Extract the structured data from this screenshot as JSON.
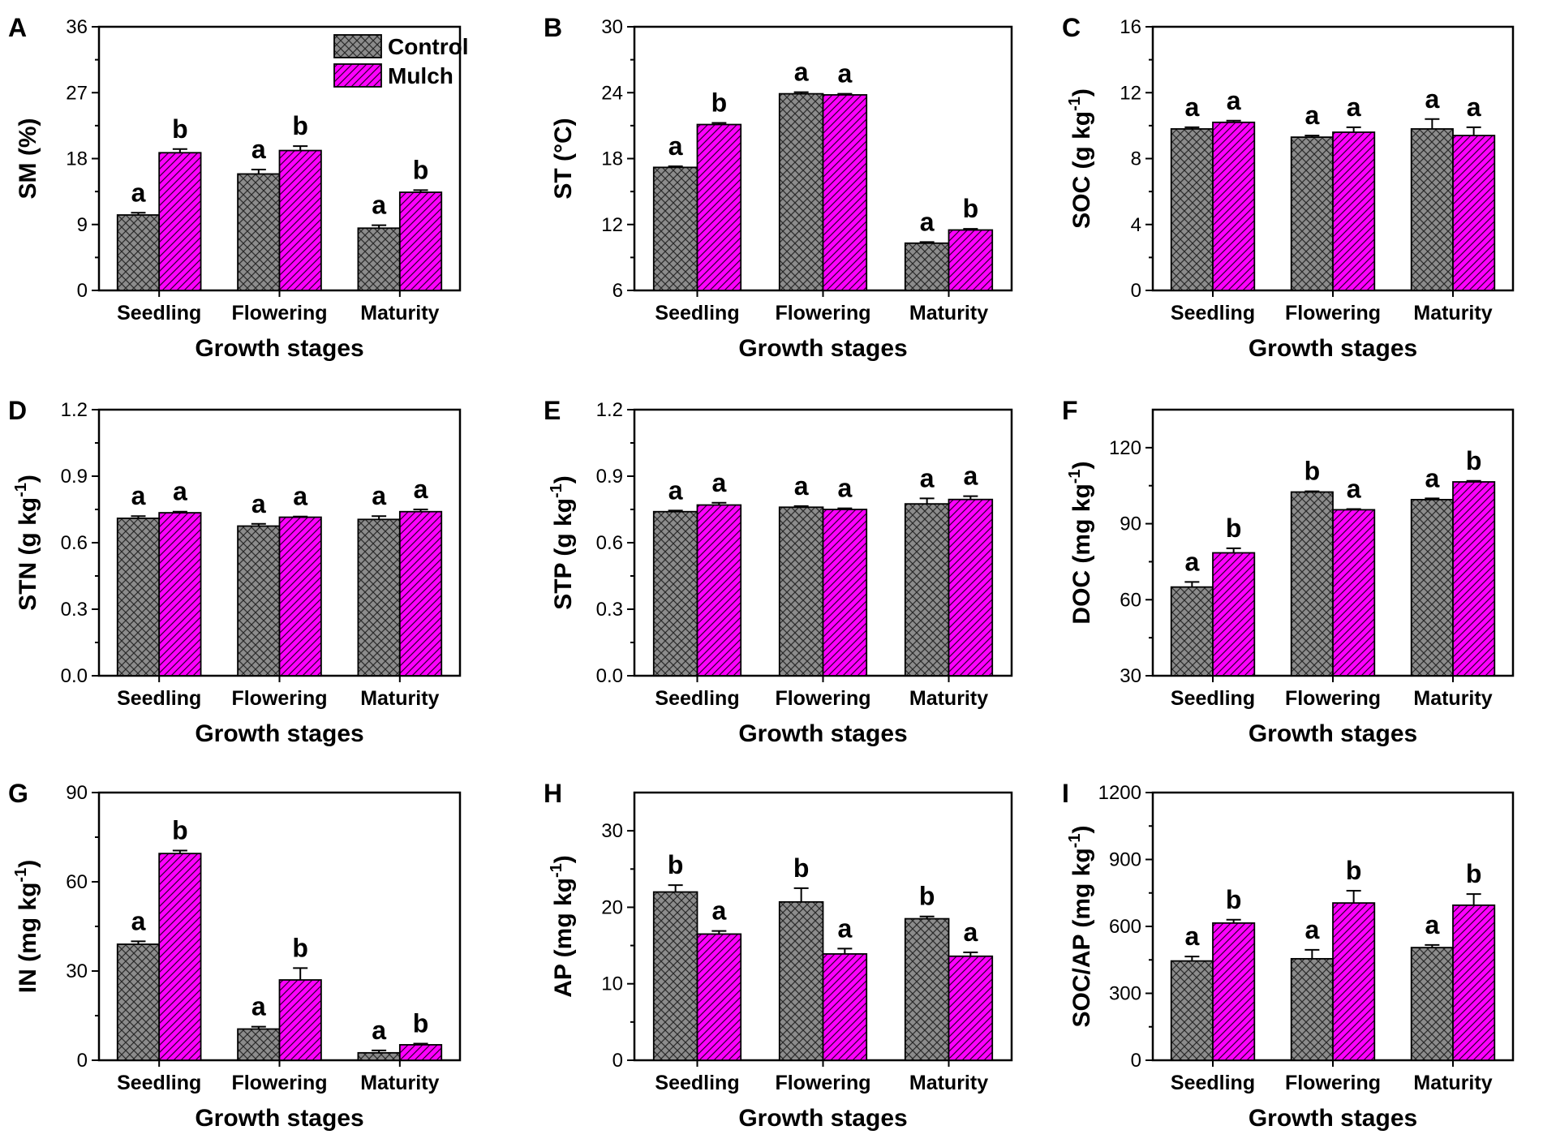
{
  "figure": {
    "x_axis_label": "Growth stages",
    "categories": [
      "Seedling",
      "Flowering",
      "Maturity"
    ],
    "legend": [
      {
        "name": "Control",
        "pattern": "crosshatch",
        "color": "#8c8c8c"
      },
      {
        "name": "Mulch",
        "pattern": "diagonal",
        "color": "#ff00ff"
      }
    ],
    "colors": {
      "control": "#8c8c8c",
      "mulch": "#ff00ff",
      "axis": "#000000"
    }
  },
  "chart_data": [
    {
      "panel": "A",
      "type": "bar",
      "ylabel": "SM (%)",
      "ylabel_sup": "",
      "ylim": [
        0,
        36
      ],
      "yticks": [
        0,
        9,
        18,
        27,
        36
      ],
      "categories": [
        "Seedling",
        "Flowering",
        "Maturity"
      ],
      "legend": "top-right",
      "series": [
        {
          "name": "Control",
          "values": [
            10.3,
            15.9,
            8.5
          ],
          "errors": [
            0.3,
            0.6,
            0.4
          ],
          "letters": [
            "a",
            "a",
            "a"
          ]
        },
        {
          "name": "Mulch",
          "values": [
            18.8,
            19.1,
            13.4
          ],
          "errors": [
            0.5,
            0.6,
            0.3
          ],
          "letters": [
            "b",
            "b",
            "b"
          ]
        }
      ]
    },
    {
      "panel": "B",
      "type": "bar",
      "ylabel": "ST (°C)",
      "ylabel_sup": "",
      "ylim": [
        6,
        30
      ],
      "yticks": [
        6,
        12,
        18,
        24,
        30
      ],
      "categories": [
        "Seedling",
        "Flowering",
        "Maturity"
      ],
      "series": [
        {
          "name": "Control",
          "values": [
            17.2,
            23.9,
            10.3
          ],
          "errors": [
            0.1,
            0.15,
            0.1
          ],
          "letters": [
            "a",
            "a",
            "a"
          ]
        },
        {
          "name": "Mulch",
          "values": [
            21.1,
            23.8,
            11.5
          ],
          "errors": [
            0.15,
            0.1,
            0.1
          ],
          "letters": [
            "b",
            "a",
            "b"
          ]
        }
      ]
    },
    {
      "panel": "C",
      "type": "bar",
      "ylabel": "SOC (g kg",
      "ylabel_sup": "-1",
      "ylabel_end": ")",
      "ylim": [
        0,
        16
      ],
      "yticks": [
        0,
        4,
        8,
        12,
        16
      ],
      "categories": [
        "Seedling",
        "Flowering",
        "Maturity"
      ],
      "series": [
        {
          "name": "Control",
          "values": [
            9.8,
            9.3,
            9.8
          ],
          "errors": [
            0.1,
            0.1,
            0.6
          ],
          "letters": [
            "a",
            "a",
            "a"
          ]
        },
        {
          "name": "Mulch",
          "values": [
            10.2,
            9.6,
            9.4
          ],
          "errors": [
            0.1,
            0.3,
            0.5
          ],
          "letters": [
            "a",
            "a",
            "a"
          ]
        }
      ]
    },
    {
      "panel": "D",
      "type": "bar",
      "ylabel": "STN (g kg",
      "ylabel_sup": "-1",
      "ylabel_end": ")",
      "ylim": [
        0,
        1.2
      ],
      "yticks": [
        0.0,
        0.3,
        0.6,
        0.9,
        1.2
      ],
      "categories": [
        "Seedling",
        "Flowering",
        "Maturity"
      ],
      "series": [
        {
          "name": "Control",
          "values": [
            0.71,
            0.675,
            0.705
          ],
          "errors": [
            0.01,
            0.01,
            0.015
          ],
          "letters": [
            "a",
            "a",
            "a"
          ]
        },
        {
          "name": "Mulch",
          "values": [
            0.735,
            0.715,
            0.74
          ],
          "errors": [
            0.005,
            0.003,
            0.01
          ],
          "letters": [
            "a",
            "a",
            "a"
          ]
        }
      ]
    },
    {
      "panel": "E",
      "type": "bar",
      "ylabel": "STP (g kg",
      "ylabel_sup": "-1",
      "ylabel_end": ")",
      "ylim": [
        0,
        1.2
      ],
      "yticks": [
        0.0,
        0.3,
        0.6,
        0.9,
        1.2
      ],
      "categories": [
        "Seedling",
        "Flowering",
        "Maturity"
      ],
      "series": [
        {
          "name": "Control",
          "values": [
            0.74,
            0.76,
            0.775
          ],
          "errors": [
            0.005,
            0.005,
            0.025
          ],
          "letters": [
            "a",
            "a",
            "a"
          ]
        },
        {
          "name": "Mulch",
          "values": [
            0.77,
            0.75,
            0.795
          ],
          "errors": [
            0.01,
            0.005,
            0.015
          ],
          "letters": [
            "a",
            "a",
            "a"
          ]
        }
      ]
    },
    {
      "panel": "F",
      "type": "bar",
      "ylabel": "DOC (mg kg",
      "ylabel_sup": "-1",
      "ylabel_end": ")",
      "ylim": [
        30,
        135
      ],
      "yticks": [
        30,
        60,
        90,
        120
      ],
      "categories": [
        "Seedling",
        "Flowering",
        "Maturity"
      ],
      "series": [
        {
          "name": "Control",
          "values": [
            65,
            102.5,
            99.5
          ],
          "errors": [
            2,
            0.3,
            0.5
          ],
          "letters": [
            "a",
            "b",
            "a"
          ]
        },
        {
          "name": "Mulch",
          "values": [
            78.5,
            95.5,
            106.5
          ],
          "errors": [
            1.8,
            0.3,
            0.4
          ],
          "letters": [
            "b",
            "a",
            "b"
          ]
        }
      ]
    },
    {
      "panel": "G",
      "type": "bar",
      "ylabel": "IN (mg kg",
      "ylabel_sup": "-1",
      "ylabel_end": ")",
      "ylim": [
        0,
        90
      ],
      "yticks": [
        0,
        30,
        60,
        90
      ],
      "categories": [
        "Seedling",
        "Flowering",
        "Maturity"
      ],
      "series": [
        {
          "name": "Control",
          "values": [
            39,
            10.5,
            2.5
          ],
          "errors": [
            1,
            0.8,
            0.8
          ],
          "letters": [
            "a",
            "a",
            "a"
          ]
        },
        {
          "name": "Mulch",
          "values": [
            69.5,
            27,
            5.2
          ],
          "errors": [
            1,
            4,
            0.4
          ],
          "letters": [
            "b",
            "b",
            "b"
          ]
        }
      ]
    },
    {
      "panel": "H",
      "type": "bar",
      "ylabel": "AP (mg kg",
      "ylabel_sup": "-1",
      "ylabel_end": ")",
      "ylim": [
        0,
        35
      ],
      "yticks": [
        0,
        10,
        20,
        30
      ],
      "categories": [
        "Seedling",
        "Flowering",
        "Maturity"
      ],
      "series": [
        {
          "name": "Control",
          "values": [
            22,
            20.7,
            18.5
          ],
          "errors": [
            0.9,
            1.8,
            0.3
          ],
          "letters": [
            "b",
            "b",
            "b"
          ]
        },
        {
          "name": "Mulch",
          "values": [
            16.5,
            13.9,
            13.6
          ],
          "errors": [
            0.4,
            0.7,
            0.5
          ],
          "letters": [
            "a",
            "a",
            "a"
          ]
        }
      ]
    },
    {
      "panel": "I",
      "type": "bar",
      "ylabel": "SOC/AP (mg kg",
      "ylabel_sup": "-1",
      "ylabel_end": ")",
      "ylim": [
        0,
        1200
      ],
      "yticks": [
        0,
        300,
        600,
        900,
        1200
      ],
      "categories": [
        "Seedling",
        "Flowering",
        "Maturity"
      ],
      "series": [
        {
          "name": "Control",
          "values": [
            445,
            455,
            505
          ],
          "errors": [
            20,
            40,
            12
          ],
          "letters": [
            "a",
            "a",
            "a"
          ]
        },
        {
          "name": "Mulch",
          "values": [
            615,
            705,
            695
          ],
          "errors": [
            15,
            55,
            50
          ],
          "letters": [
            "b",
            "b",
            "b"
          ]
        }
      ]
    }
  ]
}
